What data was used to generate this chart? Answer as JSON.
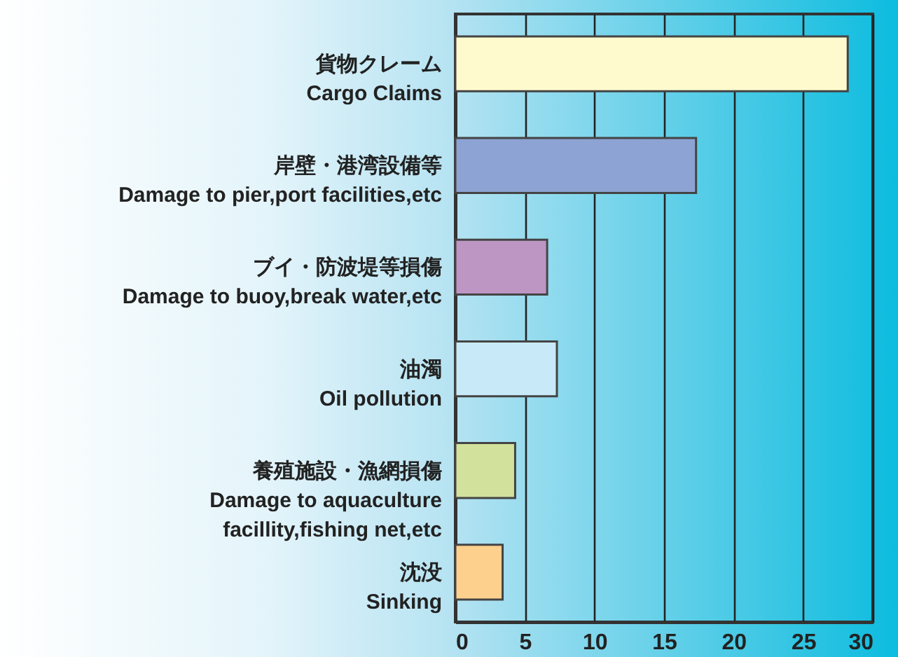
{
  "chart_data": {
    "type": "bar",
    "orientation": "horizontal",
    "categories": [
      "貨物クレーム\nCargo Claims",
      "岸壁・港湾設備等\nDamage to pier,port facilities,etc",
      "ブイ・防波堤等損傷\nDamage to buoy,break water,etc",
      "油濁\nOil pollution",
      "養殖施設・漁網損傷\nDamage to aquaculture\nfacillity,fishing net,etc",
      "沈没\nSinking"
    ],
    "values": [
      28.2,
      17.3,
      6.6,
      7.3,
      4.3,
      3.4
    ],
    "colors": [
      "#fffacd",
      "#8ca3d3",
      "#bd96c4",
      "#c8eaf8",
      "#d2e29c",
      "#fdd08e"
    ],
    "xlim": [
      0,
      30
    ],
    "xticks": [
      0,
      5,
      10,
      15,
      20,
      25,
      30
    ],
    "grid": "x"
  }
}
